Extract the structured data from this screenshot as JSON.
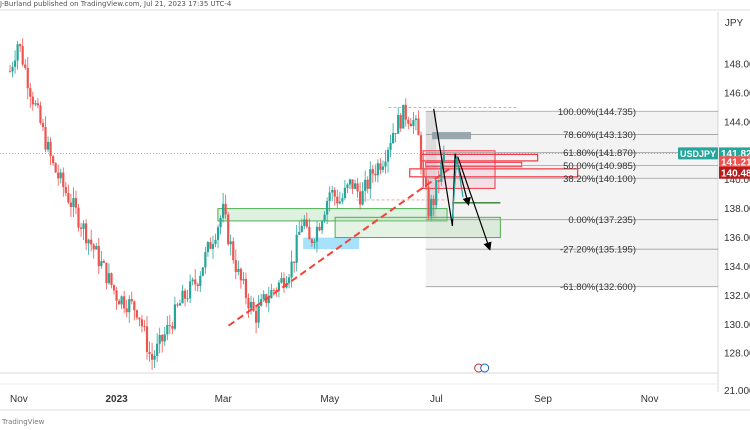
{
  "header": {
    "publisher_text": "J-Burland published on TradingView.com, Jul 21, 2023 17:35 UTC-4"
  },
  "footer": {
    "brand": "TradingView"
  },
  "colors": {
    "up": "#26a69a",
    "down": "#ef5350",
    "fib_line": "#9e9e9e",
    "badge_symbol": "#26a69a",
    "badge_red": "#ef5350",
    "badge_dark_red": "#b71c1c",
    "trend": "#f44336",
    "green_box": "#4caf50",
    "red_box": "#f23645"
  },
  "chart_data": {
    "type": "candlestick",
    "symbol": "USDJPY",
    "currency_label": "JPY",
    "x_ticks": [
      "Nov",
      "2023",
      "Mar",
      "May",
      "Jul",
      "Sep",
      "Nov"
    ],
    "y_ticks": [
      128.0,
      130.0,
      132.0,
      134.0,
      136.0,
      138.0,
      140.0,
      142.0,
      144.0,
      146.0,
      148.0
    ],
    "ylim": [
      126.7,
      151.6
    ],
    "oscillator_label": "21.000",
    "price_badges": [
      {
        "label": "USDJPY",
        "value": "141.82",
        "price": 141.82,
        "style": "symbol"
      },
      {
        "label": "",
        "value": "141.21",
        "price": 141.21,
        "style": "red"
      },
      {
        "label": "",
        "value": "140.48",
        "price": 140.48,
        "style": "dark_red"
      }
    ],
    "fib_levels": [
      {
        "label": "100.00%(144.735)",
        "price": 144.735
      },
      {
        "label": "78.60%(143.130)",
        "price": 143.13
      },
      {
        "label": "61.80%(141.870)",
        "price": 141.87
      },
      {
        "label": "50.00%(140.985)",
        "price": 140.985
      },
      {
        "label": "38.20%(140.100)",
        "price": 140.1
      },
      {
        "label": "0.00%(137.235)",
        "price": 137.235
      },
      {
        "label": "-27.20%(135.195)",
        "price": 135.195
      },
      {
        "label": "-61.80%(132.600)",
        "price": 132.6
      }
    ],
    "trendline": {
      "from": {
        "month": 4.1,
        "price": 129.9
      },
      "to": {
        "month": 8.3,
        "price": 140.9
      }
    },
    "projection_arrows": [
      {
        "points": [
          [
            7.95,
            144.9
          ],
          [
            8.3,
            136.8
          ],
          [
            8.35,
            141.8
          ],
          [
            8.6,
            138.3
          ]
        ]
      },
      {
        "points": [
          [
            8.4,
            141.6
          ],
          [
            9.0,
            135.2
          ]
        ]
      }
    ],
    "candles_seed": {
      "anchors": [
        [
          0.0,
          147.5
        ],
        [
          0.15,
          149.6
        ],
        [
          0.4,
          146.0
        ],
        [
          0.8,
          141.0
        ],
        [
          1.2,
          138.0
        ],
        [
          1.6,
          135.0
        ],
        [
          2.0,
          132.0
        ],
        [
          2.4,
          131.0
        ],
        [
          2.65,
          127.5
        ],
        [
          2.9,
          129.2
        ],
        [
          3.2,
          131.5
        ],
        [
          3.5,
          133.0
        ],
        [
          3.8,
          136.0
        ],
        [
          4.0,
          137.8
        ],
        [
          4.1,
          136.0
        ],
        [
          4.3,
          133.2
        ],
        [
          4.6,
          130.5
        ],
        [
          4.8,
          131.8
        ],
        [
          5.1,
          133.0
        ],
        [
          5.3,
          134.2
        ],
        [
          5.5,
          137.5
        ],
        [
          5.6,
          135.5
        ],
        [
          5.8,
          137.0
        ],
        [
          6.0,
          139.2
        ],
        [
          6.2,
          138.5
        ],
        [
          6.4,
          139.8
        ],
        [
          6.6,
          138.8
        ],
        [
          6.8,
          140.5
        ],
        [
          7.0,
          141.5
        ],
        [
          7.2,
          143.5
        ],
        [
          7.4,
          144.6
        ],
        [
          7.55,
          144.2
        ],
        [
          7.65,
          143.3
        ],
        [
          7.75,
          140.0
        ],
        [
          7.85,
          137.9
        ],
        [
          7.95,
          138.6
        ],
        [
          8.05,
          140.2
        ],
        [
          8.15,
          141.8
        ]
      ]
    }
  }
}
